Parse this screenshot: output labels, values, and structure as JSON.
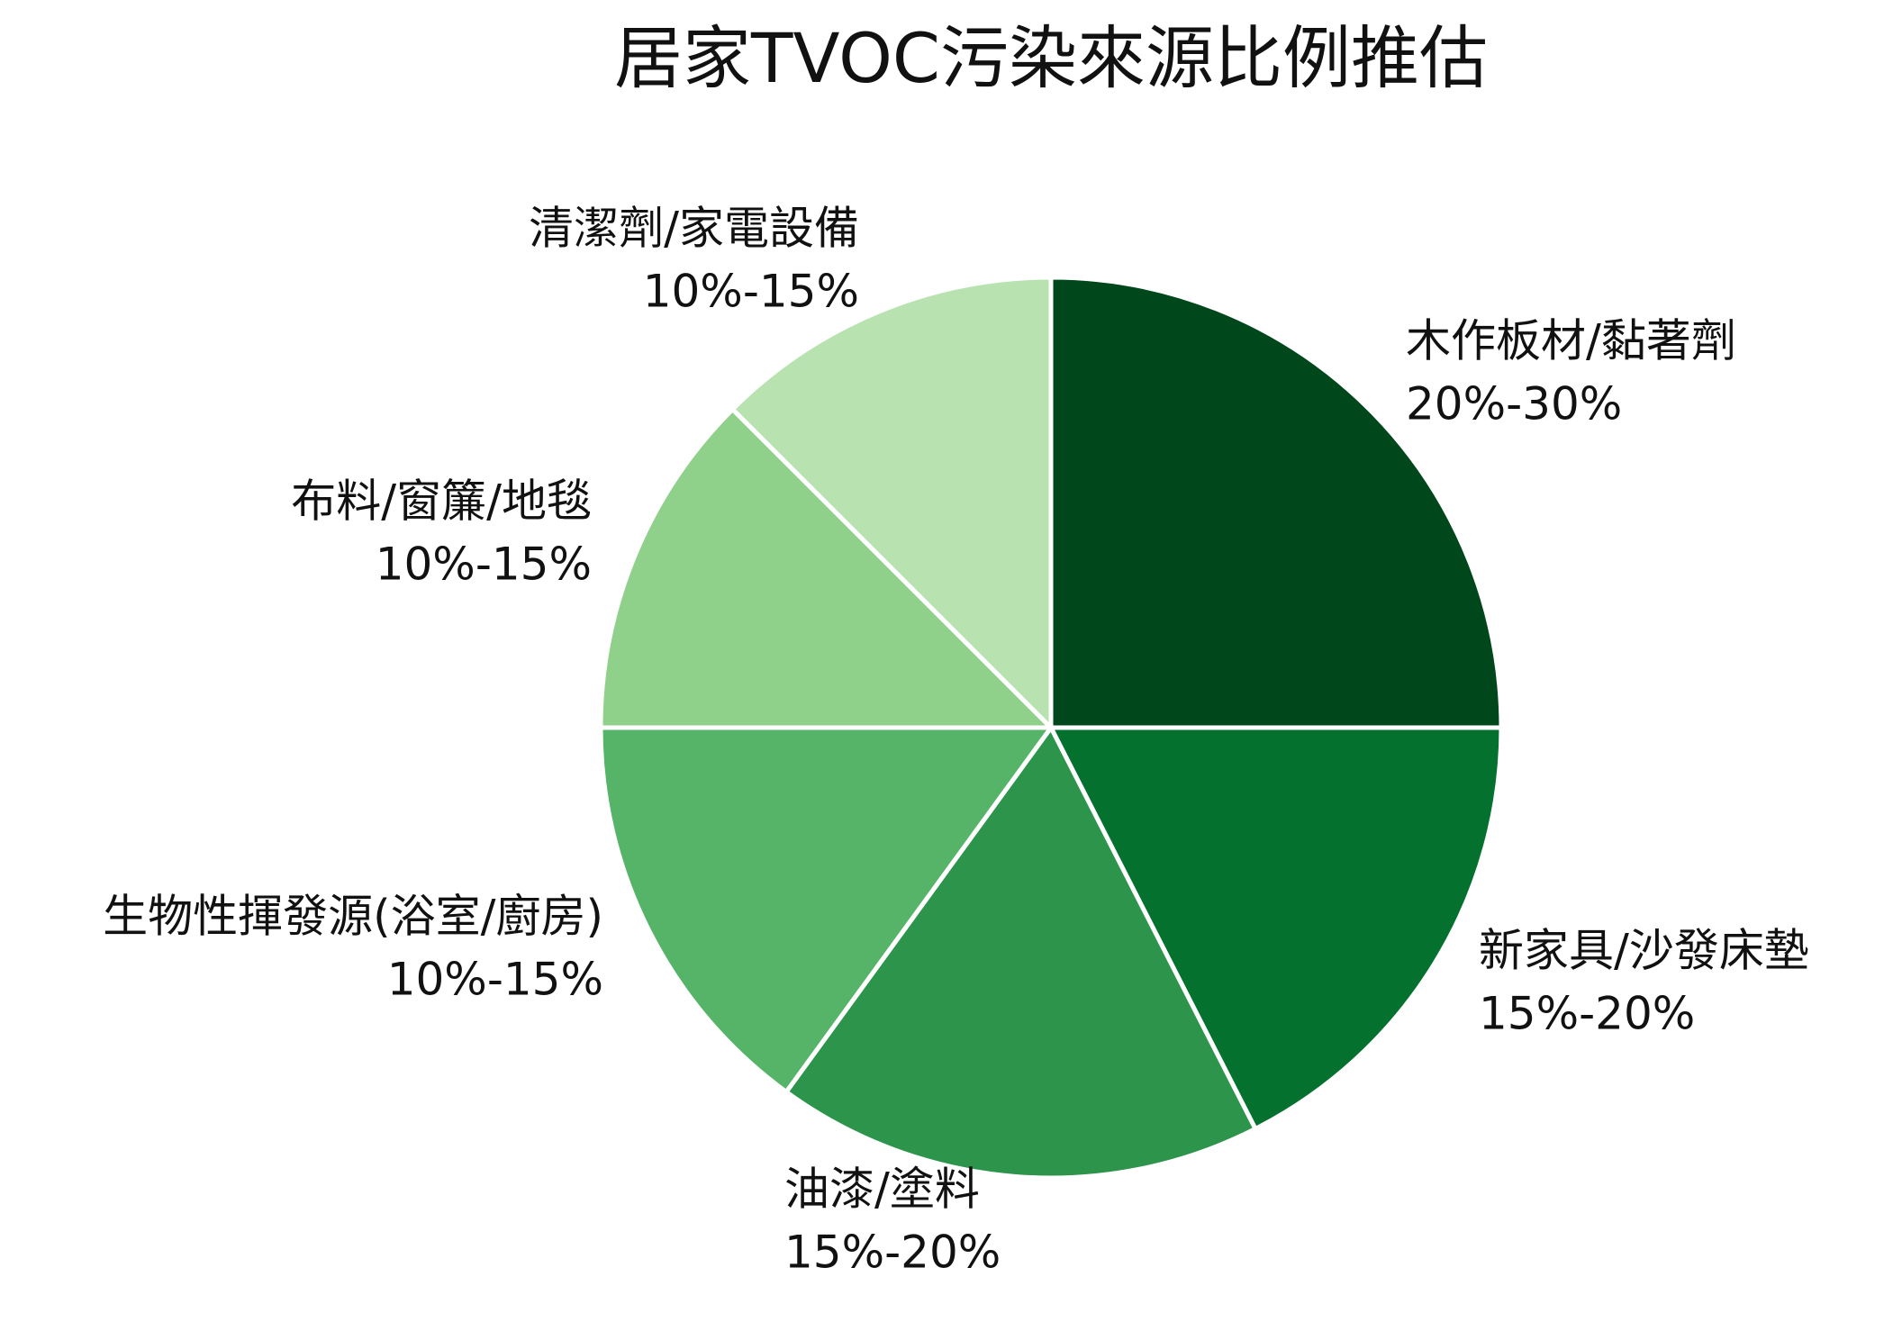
{
  "chart_data": {
    "type": "pie",
    "title": "居家TVOC污染來源比例推估",
    "categories": [
      "木作板材/黏著劑",
      "新家具/沙發床墊",
      "油漆/塗料",
      "生物性揮發源(浴室/廚房)",
      "布料/窗簾/地毯",
      "清潔劑/家電設備"
    ],
    "values": [
      25,
      17.5,
      17.5,
      15,
      12.5,
      12.5
    ],
    "value_labels": [
      "20%-30%",
      "15%-20%",
      "15%-20%",
      "10%-15%",
      "10%-15%",
      "10%-15%"
    ],
    "colors": [
      "#00471b",
      "#05712f",
      "#2d944b",
      "#56b468",
      "#8fd08a",
      "#b8e3b1"
    ]
  }
}
